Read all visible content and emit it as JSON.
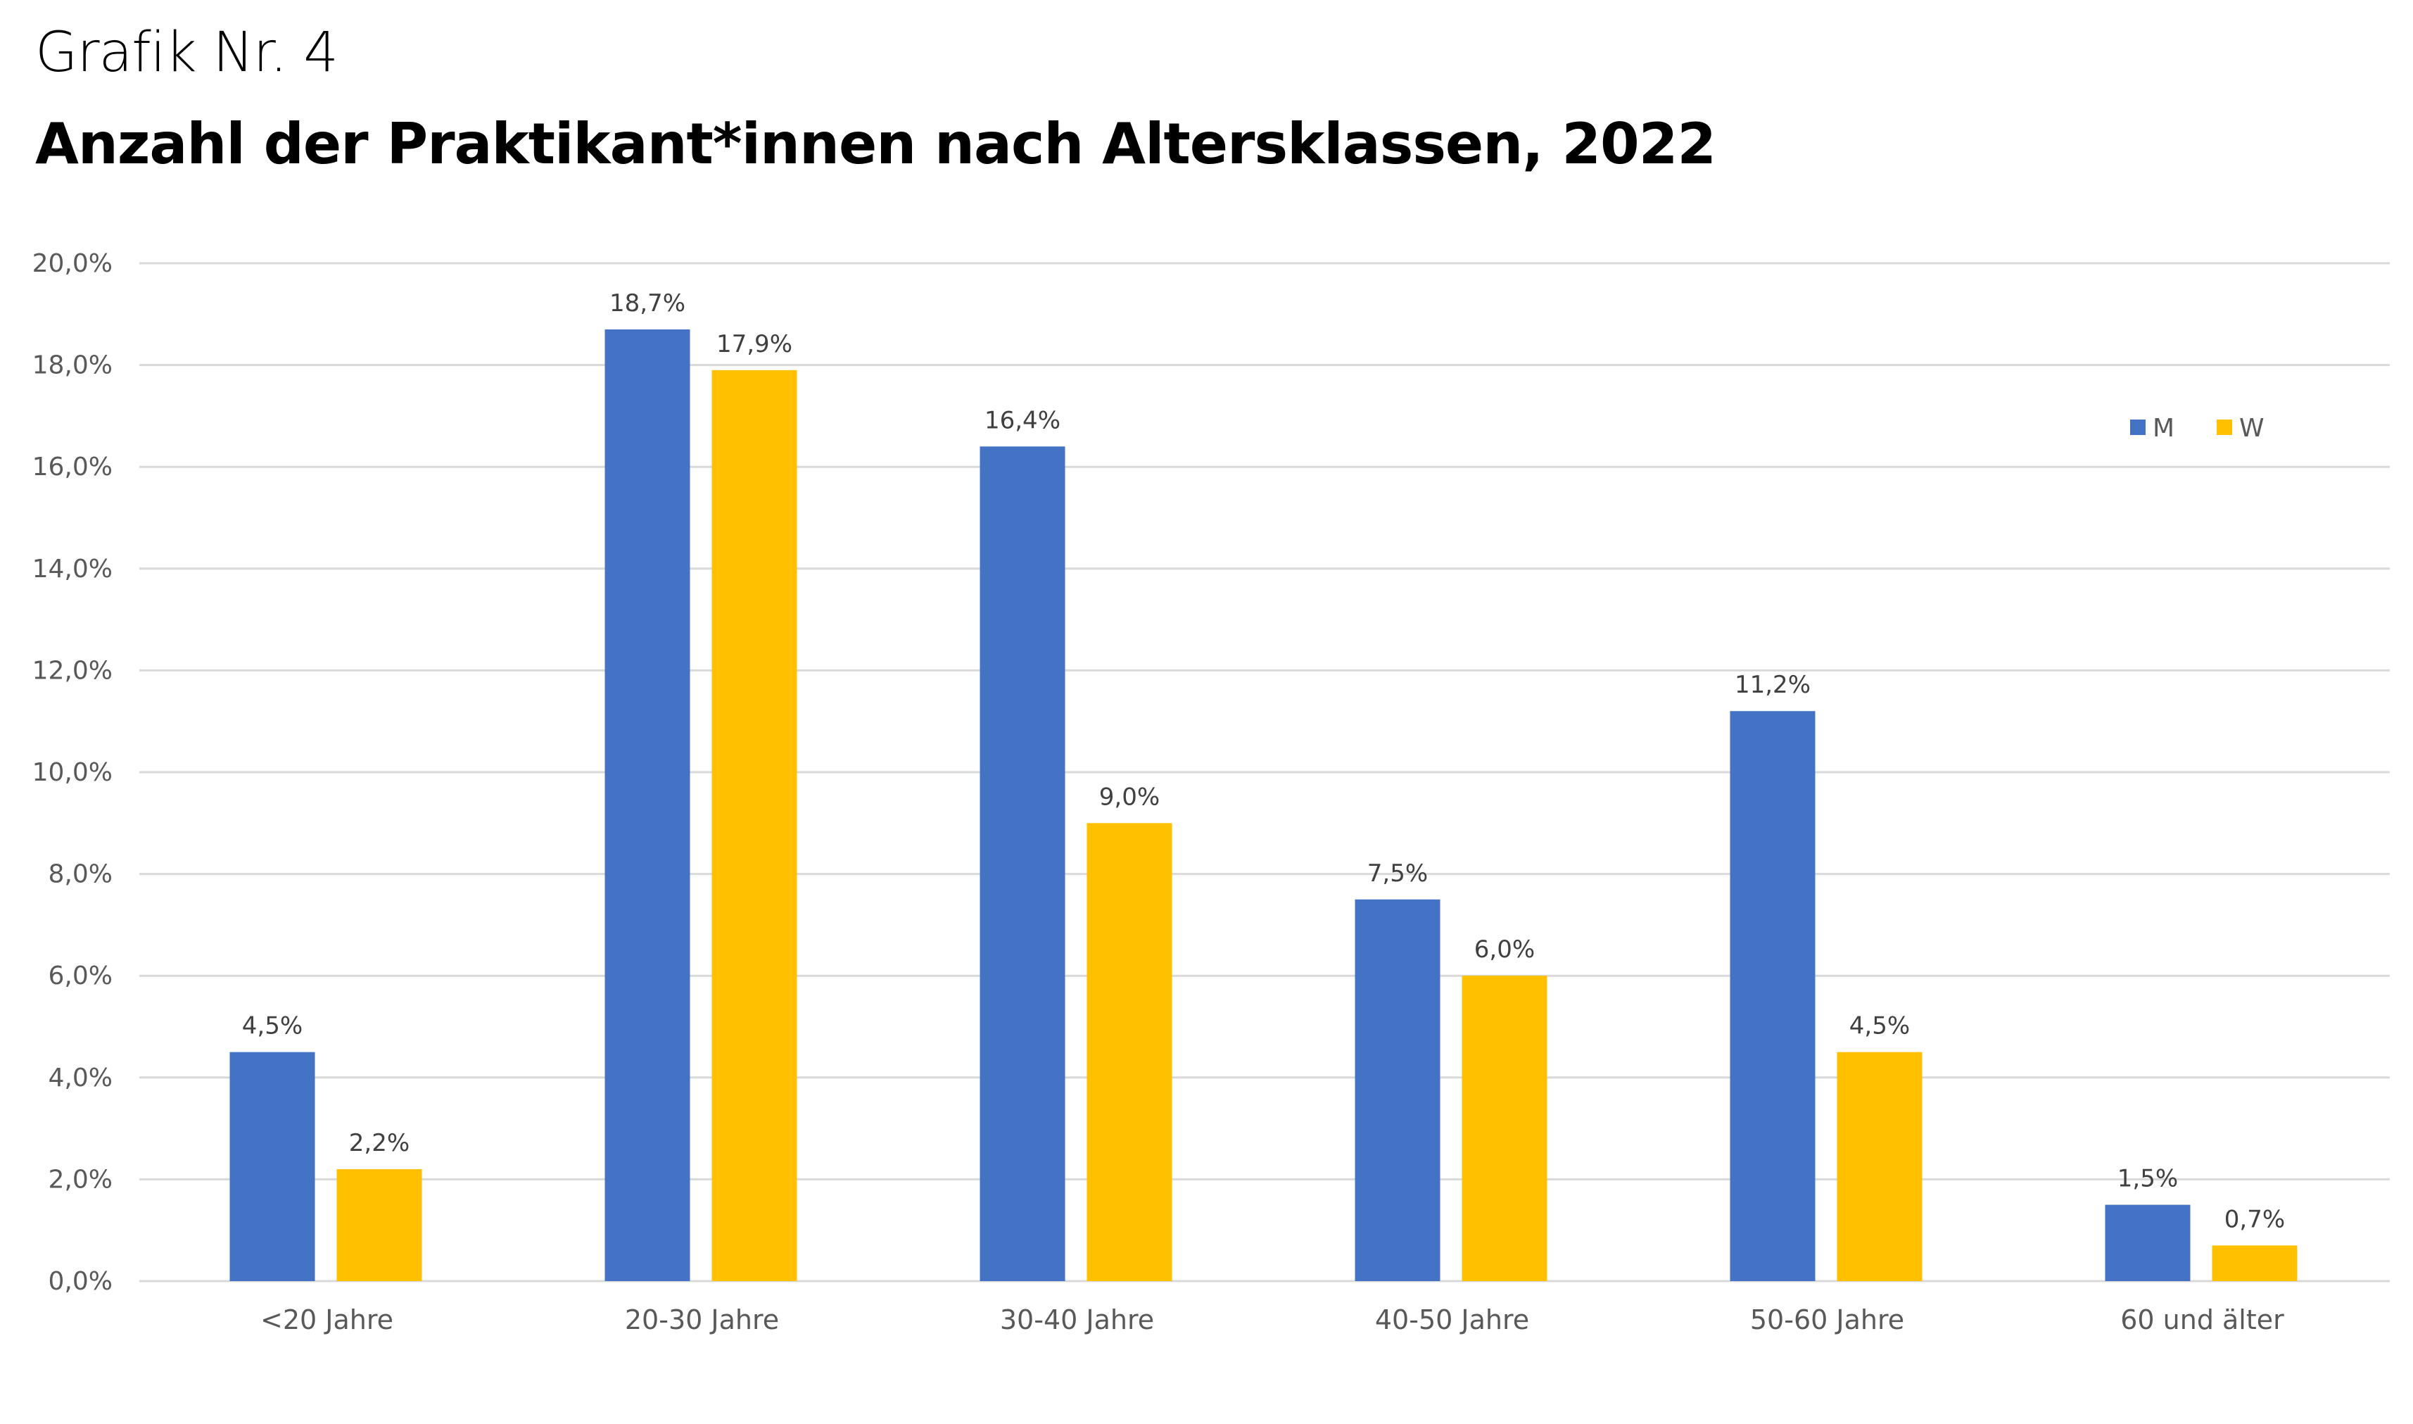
{
  "header": {
    "supertitle": "Grafik Nr. 4"
  },
  "chart_data": {
    "type": "bar",
    "title": "Anzahl der Praktikant*innen nach Altersklassen, 2022",
    "xlabel": "",
    "ylabel": "",
    "ylim": [
      0,
      20
    ],
    "yticks": [
      "0,0%",
      "2,0%",
      "4,0%",
      "6,0%",
      "8,0%",
      "10,0%",
      "12,0%",
      "14,0%",
      "16,0%",
      "18,0%",
      "20,0%"
    ],
    "ytick_values": [
      0,
      2,
      4,
      6,
      8,
      10,
      12,
      14,
      16,
      18,
      20
    ],
    "categories": [
      "<20 Jahre",
      "20-30 Jahre",
      "30-40 Jahre",
      "40-50 Jahre",
      "50-60 Jahre",
      "60 und älter"
    ],
    "series": [
      {
        "name": "M",
        "color": "#4472C4",
        "values": [
          4.5,
          18.7,
          16.4,
          7.5,
          11.2,
          1.5
        ],
        "labels": [
          "4,5%",
          "18,7%",
          "16,4%",
          "7,5%",
          "11,2%",
          "1,5%"
        ]
      },
      {
        "name": "W",
        "color": "#FFC000",
        "values": [
          2.2,
          17.9,
          9.0,
          6.0,
          4.5,
          0.7
        ],
        "labels": [
          "2,2%",
          "17,9%",
          "9,0%",
          "6,0%",
          "4,5%",
          "0,7%"
        ]
      }
    ],
    "grid": true,
    "legend": "top-right"
  }
}
